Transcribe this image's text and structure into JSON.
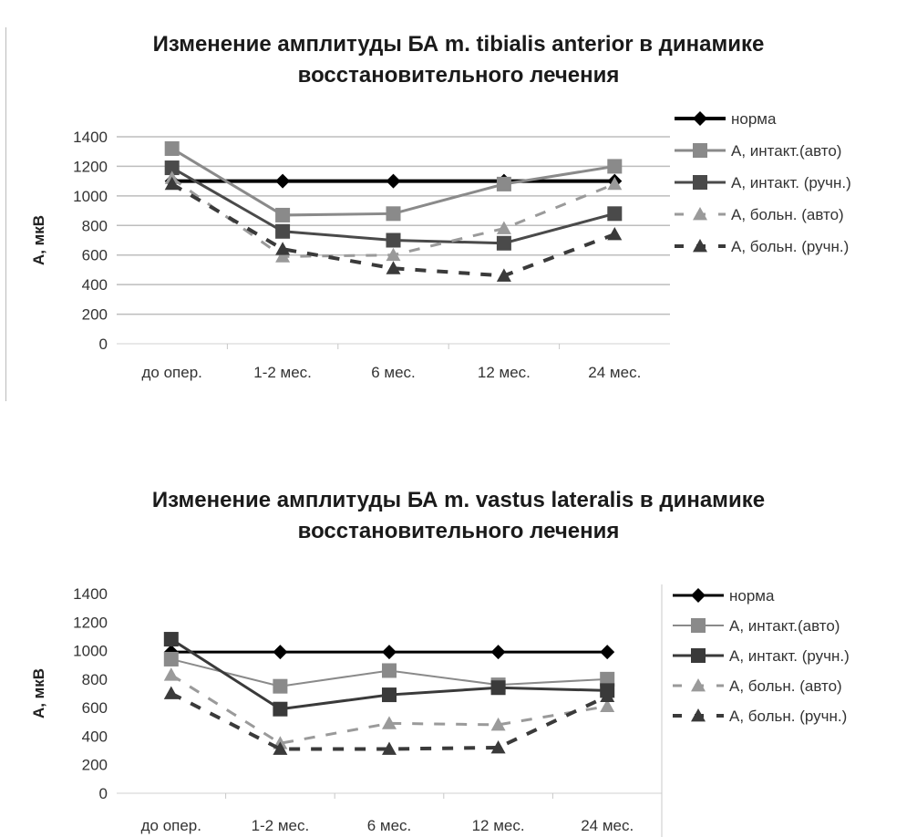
{
  "chart_data": [
    {
      "type": "line",
      "title": [
        "Изменение амплитуды БА m. tibialis anterior в динамике",
        "восстановительного лечения"
      ],
      "ylabel": "А, мкВ",
      "categories": [
        "до опер.",
        "1-2 мес.",
        "6 мес.",
        "12 мес.",
        "24 мес."
      ],
      "ylim": [
        0,
        1400
      ],
      "yticks": [
        0,
        200,
        400,
        600,
        800,
        1000,
        1200,
        1400
      ],
      "grid": true,
      "legend_position": "right",
      "series": [
        {
          "name": "норма",
          "values": [
            1100,
            1100,
            1100,
            1100,
            1100
          ],
          "color": "#000000",
          "marker": "diamond",
          "dash": false,
          "width": 4
        },
        {
          "name": "А, интакт.(авто)",
          "values": [
            1320,
            870,
            880,
            1080,
            1200
          ],
          "color": "#8a8a8a",
          "marker": "square",
          "dash": false,
          "width": 3
        },
        {
          "name": "А, интакт. (ручн.)",
          "values": [
            1190,
            760,
            700,
            680,
            880
          ],
          "color": "#4a4a4a",
          "marker": "square",
          "dash": false,
          "width": 3
        },
        {
          "name": "А, больн. (авто)",
          "values": [
            1120,
            590,
            600,
            780,
            1080
          ],
          "color": "#9a9a9a",
          "marker": "triangle",
          "dash": true,
          "width": 3
        },
        {
          "name": "А, больн. (ручн.)",
          "values": [
            1080,
            640,
            510,
            460,
            740
          ],
          "color": "#3a3a3a",
          "marker": "triangle",
          "dash": true,
          "width": 4
        }
      ]
    },
    {
      "type": "line",
      "title": [
        "Изменение амплитуды БА m. vastus lateralis в динамике",
        "восстановительного лечения"
      ],
      "ylabel": "А, мкВ",
      "categories": [
        "до опер.",
        "1-2 мес.",
        "6 мес.",
        "12 мес.",
        "24 мес."
      ],
      "ylim": [
        0,
        1400
      ],
      "yticks": [
        0,
        200,
        400,
        600,
        800,
        1000,
        1200,
        1400
      ],
      "grid": false,
      "legend_position": "right",
      "series": [
        {
          "name": "норма",
          "values": [
            990,
            990,
            990,
            990,
            990
          ],
          "color": "#000000",
          "marker": "diamond",
          "dash": false,
          "width": 3
        },
        {
          "name": "А, интакт.(авто)",
          "values": [
            940,
            750,
            860,
            760,
            800
          ],
          "color": "#8a8a8a",
          "marker": "square",
          "dash": false,
          "width": 2
        },
        {
          "name": "А, интакт. (ручн.)",
          "values": [
            1080,
            590,
            690,
            740,
            720
          ],
          "color": "#3a3a3a",
          "marker": "square",
          "dash": false,
          "width": 3
        },
        {
          "name": "А, больн. (авто)",
          "values": [
            830,
            350,
            490,
            480,
            610
          ],
          "color": "#9a9a9a",
          "marker": "triangle",
          "dash": true,
          "width": 3
        },
        {
          "name": "А, больн. (ручн.)",
          "values": [
            700,
            310,
            310,
            320,
            680
          ],
          "color": "#3a3a3a",
          "marker": "triangle",
          "dash": true,
          "width": 4
        }
      ]
    }
  ]
}
